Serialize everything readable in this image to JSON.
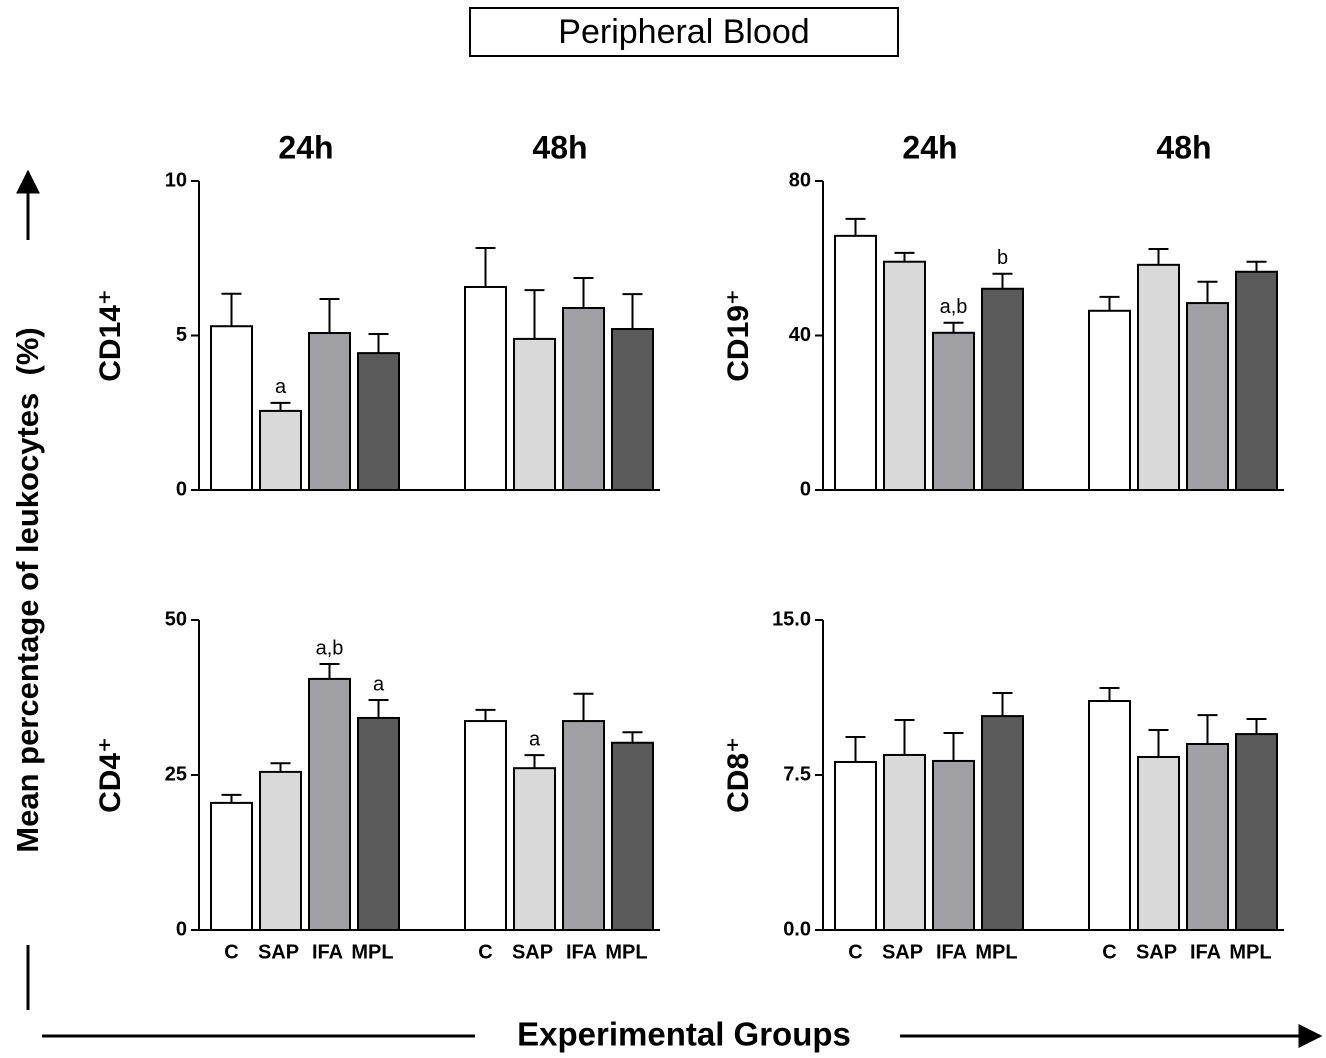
{
  "header": {
    "title": "Peripheral Blood",
    "y_title": "Mean percentage of leukocytes  (%)",
    "x_title": "Experimental Groups"
  },
  "colors": [
    "#ffffff",
    "#d9d9d9",
    "#a0a0a4",
    "#5a5a5a"
  ],
  "chart_data": [
    {
      "type": "bar",
      "ylabel": "CD14⁺",
      "groups": [
        "24h",
        "48h"
      ],
      "ylim": [
        0,
        10
      ],
      "yticks": [
        0,
        5,
        10
      ],
      "values": [
        [
          5.3,
          2.56,
          5.08,
          4.43
        ],
        [
          6.57,
          4.89,
          5.89,
          5.21
        ]
      ],
      "errors": [
        [
          1.05,
          0.26,
          1.1,
          0.62
        ],
        [
          1.26,
          1.58,
          0.97,
          1.13
        ]
      ],
      "annotations": [
        [
          null,
          "a",
          null,
          null
        ],
        [
          null,
          null,
          null,
          null
        ]
      ]
    },
    {
      "type": "bar",
      "ylabel": "CD19⁺",
      "groups": [
        "24h",
        "48h"
      ],
      "ylim": [
        0,
        80
      ],
      "yticks": [
        0,
        40,
        80
      ],
      "values": [
        [
          65.8,
          59.1,
          40.7,
          52.1
        ],
        [
          46.4,
          58.3,
          48.4,
          56.5
        ]
      ],
      "errors": [
        [
          4.4,
          2.3,
          2.6,
          3.9
        ],
        [
          3.6,
          4.1,
          5.5,
          2.6
        ]
      ],
      "annotations": [
        [
          null,
          null,
          "a,b",
          "b"
        ],
        [
          null,
          null,
          null,
          null
        ]
      ]
    },
    {
      "type": "bar",
      "ylabel": "CD4⁺",
      "categories": [
        "C",
        "SAP",
        "IFA",
        "MPL"
      ],
      "ylim": [
        0,
        50
      ],
      "yticks": [
        0,
        25,
        50
      ],
      "values": [
        [
          20.5,
          25.5,
          40.5,
          34.2
        ],
        [
          33.7,
          26.1,
          33.7,
          30.2
        ]
      ],
      "errors": [
        [
          1.3,
          1.4,
          2.4,
          2.9
        ],
        [
          1.8,
          2.1,
          4.4,
          1.7
        ]
      ],
      "annotations": [
        [
          null,
          null,
          "a,b",
          "a"
        ],
        [
          null,
          "a",
          null,
          null
        ]
      ]
    },
    {
      "type": "bar",
      "ylabel": "CD8⁺",
      "categories": [
        "C",
        "SAP",
        "IFA",
        "MPL"
      ],
      "ylim": [
        0,
        15
      ],
      "yticks": [
        {
          "value": 0,
          "label": "0.0"
        },
        {
          "value": 7.5,
          "label": "7.5"
        },
        {
          "value": 15,
          "label": "15.0"
        }
      ],
      "values": [
        [
          8.13,
          8.47,
          8.18,
          10.35
        ],
        [
          11.08,
          8.37,
          9.0,
          9.48
        ]
      ],
      "errors": [
        [
          1.21,
          1.69,
          1.35,
          1.12
        ],
        [
          0.63,
          1.31,
          1.4,
          0.73
        ]
      ],
      "annotations": [
        [
          null,
          null,
          null,
          null
        ],
        [
          null,
          null,
          null,
          null
        ]
      ]
    }
  ]
}
